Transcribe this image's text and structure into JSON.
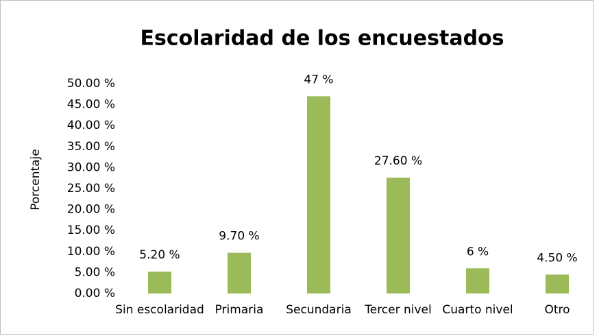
{
  "chart_data": {
    "type": "bar",
    "title": "Escolaridad de los encuestados",
    "y_label": "Porcentaje",
    "categories": [
      "Sin escolaridad",
      "Primaria",
      "Secundaria",
      "Tercer nivel",
      "Cuarto nivel",
      "Otro"
    ],
    "values": [
      5.2,
      9.7,
      47,
      27.6,
      6,
      4.5
    ],
    "value_labels": [
      "5.20 %",
      "9.70 %",
      "47 %",
      "27.60 %",
      "6 %",
      "4.50 %"
    ],
    "color": "#9bbb59",
    "ylim": [
      0,
      50
    ],
    "yticks": [
      {
        "value": 0,
        "label": "0.00 %"
      },
      {
        "value": 5,
        "label": "5.00 %"
      },
      {
        "value": 10,
        "label": "10.00 %"
      },
      {
        "value": 15,
        "label": "15.00 %"
      },
      {
        "value": 20,
        "label": "20.00 %"
      },
      {
        "value": 25,
        "label": "25.00 %"
      },
      {
        "value": 30,
        "label": "30.00 %"
      },
      {
        "value": 35,
        "label": "35.00 %"
      },
      {
        "value": 40,
        "label": "40.00 %"
      },
      {
        "value": 45,
        "label": "45.00 %"
      },
      {
        "value": 50,
        "label": "50.00 %"
      }
    ],
    "grid": false
  }
}
